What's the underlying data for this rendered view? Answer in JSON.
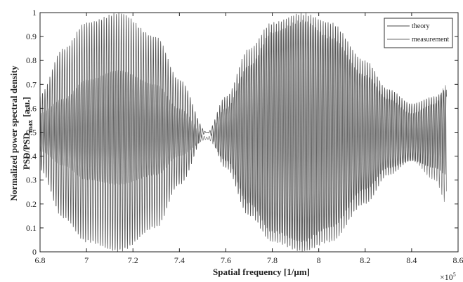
{
  "chart_data": {
    "type": "line",
    "xlabel": "Spatial frequency [1/µm]",
    "ylabel_line1": "Normalized power spectral density",
    "ylabel_line2_main": "PSD/PSD",
    "ylabel_line2_sub": "max",
    "ylabel_line2_unit": "[a.u.]",
    "x_multiplier_base": "×10",
    "x_multiplier_exp": "5",
    "xlim": [
      6.8,
      8.6
    ],
    "ylim": [
      0,
      1
    ],
    "x_ticks": [
      "6.8",
      "7",
      "7.2",
      "7.4",
      "7.6",
      "7.8",
      "8",
      "8.2",
      "8.4",
      "8.6"
    ],
    "y_ticks": [
      "0",
      "0.1",
      "0.2",
      "0.3",
      "0.4",
      "0.5",
      "0.6",
      "0.7",
      "0.8",
      "0.9",
      "1"
    ],
    "x_range_data": [
      6.8,
      8.55
    ],
    "oscillation_period": 0.0106,
    "legend_position": "top-right",
    "grid": false,
    "series": [
      {
        "name": "theory",
        "color": "#4a4a4a",
        "envelope_x": [
          6.8,
          6.9,
          7.0,
          7.14,
          7.3,
          7.4,
          7.52,
          7.6,
          7.7,
          7.8,
          7.93,
          8.05,
          8.2,
          8.3,
          8.4,
          8.5,
          8.55
        ],
        "envelope_max": [
          0.66,
          0.85,
          0.96,
          1.0,
          0.9,
          0.72,
          0.5,
          0.65,
          0.85,
          0.96,
          1.0,
          0.96,
          0.8,
          0.68,
          0.62,
          0.65,
          0.68
        ],
        "envelope_min": [
          0.34,
          0.14,
          0.04,
          0.0,
          0.1,
          0.28,
          0.5,
          0.35,
          0.15,
          0.04,
          0.0,
          0.04,
          0.2,
          0.32,
          0.38,
          0.35,
          0.32
        ]
      },
      {
        "name": "measurement",
        "color": "#6a6a6a",
        "envelope_x": [
          6.8,
          6.9,
          7.0,
          7.14,
          7.3,
          7.4,
          7.52,
          7.6,
          7.7,
          7.8,
          7.93,
          8.05,
          8.2,
          8.3,
          8.4,
          8.5,
          8.55
        ],
        "envelope_max": [
          0.58,
          0.64,
          0.72,
          0.76,
          0.7,
          0.6,
          0.48,
          0.6,
          0.78,
          0.92,
          0.97,
          0.9,
          0.74,
          0.64,
          0.58,
          0.62,
          0.7
        ],
        "envelope_min": [
          0.42,
          0.36,
          0.3,
          0.28,
          0.32,
          0.4,
          0.47,
          0.38,
          0.2,
          0.08,
          0.04,
          0.1,
          0.26,
          0.35,
          0.38,
          0.3,
          0.2
        ]
      }
    ]
  }
}
